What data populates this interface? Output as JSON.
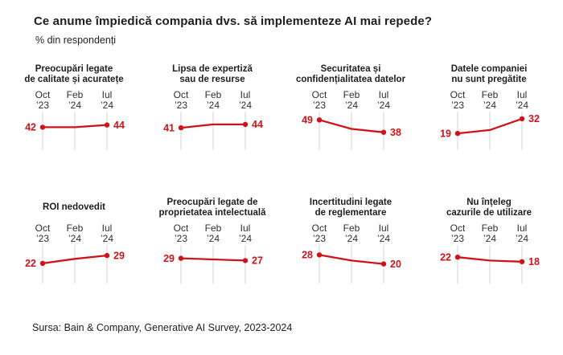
{
  "header": {
    "title": "Ce anume împiedică compania dvs. să implementeze AI mai repede?",
    "subtitle": "% din respondenți"
  },
  "footer": {
    "source": "Sursa: Bain & Company, Generative AI Survey, 2023-2024"
  },
  "colors": {
    "line": "#d0131a",
    "point": "#d0131a",
    "value_label": "#d0131a",
    "gridline": "#dcdcda",
    "title_text": "#1e1e1c",
    "tick_text": "#2e2e2b",
    "background": "#ffffff"
  },
  "chart_data": {
    "type": "line",
    "layout": "small-multiples-4x2",
    "title": "Ce anume împiedică compania dvs. să implementeze AI mai repede?",
    "ylabel": "% din respondenți",
    "categories": [
      "Oct\n’23",
      "Feb\n’24",
      "Iul\n’24"
    ],
    "grid": "vertical-tick-lines",
    "legend_position": "none",
    "series": [
      {
        "name": "Preocupări legate\nde calitate și acuratețe",
        "values": [
          42,
          42,
          44
        ],
        "endpoint_labels": [
          "42",
          "44"
        ]
      },
      {
        "name": "Lipsa de expertiză\nsau de resurse",
        "values": [
          41,
          44,
          44
        ],
        "endpoint_labels": [
          "41",
          "44"
        ]
      },
      {
        "name": "Securitatea și\nconfidențialitatea datelor",
        "values": [
          49,
          41,
          38
        ],
        "endpoint_labels": [
          "49",
          "38"
        ]
      },
      {
        "name": "Datele companiei\nnu sunt pregătite",
        "values": [
          19,
          22,
          32
        ],
        "endpoint_labels": [
          "19",
          "32"
        ]
      },
      {
        "name": "ROI nedovedit",
        "values": [
          22,
          26,
          29
        ],
        "endpoint_labels": [
          "22",
          "29"
        ]
      },
      {
        "name": "Preocupări legate de\nproprietatea intelectuală",
        "values": [
          29,
          28,
          27
        ],
        "endpoint_labels": [
          "29",
          "27"
        ]
      },
      {
        "name": "Incertitudini legate\nde reglementare",
        "values": [
          28,
          23,
          20
        ],
        "endpoint_labels": [
          "28",
          "20"
        ]
      },
      {
        "name": "Nu înțeleg\ncazurile de utilizare",
        "values": [
          22,
          19,
          18
        ],
        "endpoint_labels": [
          "22",
          "18"
        ]
      }
    ]
  }
}
